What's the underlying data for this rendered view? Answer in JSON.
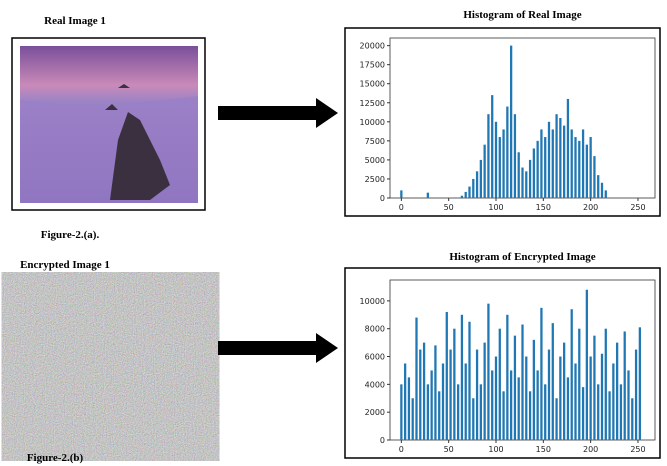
{
  "panels": {
    "real_label": "Real Image 1",
    "figure_a": "Figure-2.(a).",
    "encrypted_label": "Encrypted Image 1",
    "figure_b": "Figure-2.(b)"
  },
  "chart_data": [
    {
      "type": "bar",
      "title": "Histogram of Real Image",
      "color": "#1f77b4",
      "x": [
        0,
        4,
        8,
        12,
        16,
        20,
        24,
        28,
        32,
        36,
        40,
        44,
        48,
        52,
        56,
        60,
        64,
        68,
        72,
        76,
        80,
        84,
        88,
        92,
        96,
        100,
        104,
        108,
        112,
        116,
        120,
        124,
        128,
        132,
        136,
        140,
        144,
        148,
        152,
        156,
        160,
        164,
        168,
        172,
        176,
        180,
        184,
        188,
        192,
        196,
        200,
        204,
        208,
        212,
        216,
        220,
        224,
        228,
        232,
        236,
        240,
        244,
        248,
        252
      ],
      "values": [
        1000,
        0,
        0,
        0,
        0,
        0,
        0,
        700,
        0,
        0,
        0,
        0,
        0,
        0,
        0,
        0,
        300,
        800,
        1500,
        2500,
        3500,
        5000,
        7000,
        11000,
        13500,
        10000,
        8000,
        9000,
        12000,
        20000,
        11000,
        6000,
        4000,
        3500,
        5000,
        6500,
        7500,
        9000,
        8000,
        10000,
        9000,
        11000,
        10500,
        9500,
        13000,
        9000,
        8000,
        7500,
        9000,
        7000,
        8000,
        5500,
        3000,
        2000,
        1000,
        0,
        0,
        0,
        0,
        0,
        0,
        0,
        0,
        0
      ],
      "xlim": [
        -12,
        268
      ],
      "ylim": [
        0,
        21000
      ],
      "xticks": [
        0,
        50,
        100,
        150,
        200,
        250
      ],
      "yticks": [
        0,
        2500,
        5000,
        7500,
        10000,
        12500,
        15000,
        17500,
        20000
      ]
    },
    {
      "type": "bar",
      "title": "Histogram of Encrypted Image",
      "color": "#1f77b4",
      "x": [
        0,
        4,
        8,
        12,
        16,
        20,
        24,
        28,
        32,
        36,
        40,
        44,
        48,
        52,
        56,
        60,
        64,
        68,
        72,
        76,
        80,
        84,
        88,
        92,
        96,
        100,
        104,
        108,
        112,
        116,
        120,
        124,
        128,
        132,
        136,
        140,
        144,
        148,
        152,
        156,
        160,
        164,
        168,
        172,
        176,
        180,
        184,
        188,
        192,
        196,
        200,
        204,
        208,
        212,
        216,
        220,
        224,
        228,
        232,
        236,
        240,
        244,
        248,
        252
      ],
      "values": [
        4000,
        5500,
        4500,
        3000,
        8800,
        6500,
        7000,
        4000,
        5000,
        6800,
        3500,
        5500,
        9200,
        6500,
        8000,
        4000,
        9000,
        5500,
        8500,
        3000,
        6500,
        4000,
        7000,
        9800,
        5000,
        6000,
        8000,
        3500,
        9000,
        5000,
        7500,
        4500,
        8300,
        6000,
        3500,
        7200,
        5000,
        9500,
        4000,
        6500,
        8400,
        3000,
        6000,
        7000,
        4500,
        9400,
        5500,
        8000,
        3800,
        10800,
        6000,
        7500,
        4000,
        6200,
        8000,
        3500,
        5500,
        7000,
        4000,
        7800,
        5000,
        3000,
        6500,
        8100
      ],
      "xlim": [
        -12,
        268
      ],
      "ylim": [
        0,
        11500
      ],
      "xticks": [
        0,
        50,
        100,
        150,
        200,
        250
      ],
      "yticks": [
        0,
        2000,
        4000,
        6000,
        8000,
        10000
      ]
    }
  ]
}
